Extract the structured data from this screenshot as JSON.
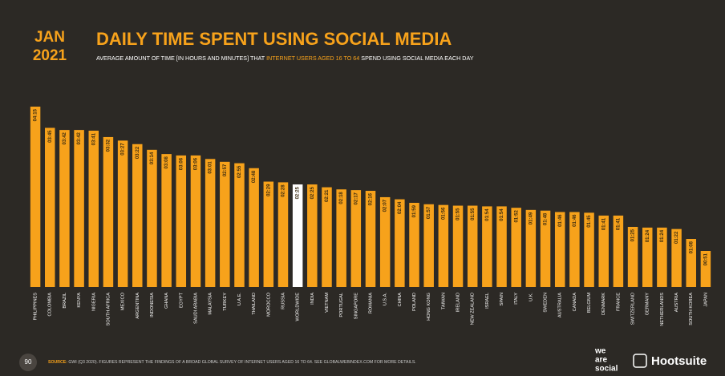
{
  "header": {
    "badge_month": "JAN",
    "badge_year": "2021"
  },
  "chart_data": {
    "type": "bar",
    "title": "DAILY TIME SPENT USING SOCIAL MEDIA",
    "subtitle_parts": [
      "AVERAGE AMOUNT OF TIME [IN HOURS AND MINUTES] THAT ",
      "INTERNET USERS AGED 16 TO 64",
      " SPEND USING SOCIAL MEDIA EACH DAY"
    ],
    "categories": [
      "PHILIPPINES",
      "COLOMBIA",
      "BRAZIL",
      "KENYA",
      "NIGERIA",
      "SOUTH AFRICA",
      "MEXICO",
      "ARGENTINA",
      "INDONESIA",
      "GHANA",
      "EGYPT",
      "SAUDI ARABIA",
      "MALAYSIA",
      "TURKEY",
      "U.A.E.",
      "THAILAND",
      "MOROCCO",
      "RUSSIA",
      "WORLDWIDE",
      "INDIA",
      "VIETNAM",
      "PORTUGAL",
      "SINGAPORE",
      "ROMANIA",
      "U.S.A.",
      "CHINA",
      "POLAND",
      "HONG KONG",
      "TAIWAN",
      "IRELAND",
      "NEW ZEALAND",
      "ISRAEL",
      "SPAIN",
      "ITALY",
      "U.K.",
      "SWEDEN",
      "AUSTRALIA",
      "CANADA",
      "BELGIUM",
      "DENMARK",
      "FRANCE",
      "SWITZERLAND",
      "GERMANY",
      "NETHERLANDS",
      "AUSTRIA",
      "SOUTH KOREA",
      "JAPAN"
    ],
    "values": [
      255,
      225,
      222,
      222,
      221,
      212,
      207,
      202,
      194,
      188,
      186,
      186,
      181,
      177,
      175,
      168,
      149,
      148,
      145,
      145,
      141,
      138,
      137,
      136,
      127,
      124,
      119,
      117,
      116,
      115,
      115,
      114,
      114,
      112,
      109,
      108,
      106,
      106,
      105,
      101,
      101,
      85,
      84,
      84,
      82,
      68,
      51
    ],
    "value_labels": [
      "04:15",
      "03:45",
      "03:42",
      "03:42",
      "03:41",
      "03:32",
      "03:27",
      "03:22",
      "03:14",
      "03:08",
      "03:06",
      "03:06",
      "03:01",
      "02:57",
      "02:55",
      "02:48",
      "02:29",
      "02:28",
      "02:25",
      "02:25",
      "02:21",
      "02:18",
      "02:17",
      "02:16",
      "02:07",
      "02:04",
      "01:59",
      "01:57",
      "01:56",
      "01:55",
      "01:55",
      "01:54",
      "01:54",
      "01:52",
      "01:49",
      "01:48",
      "01:46",
      "01:46",
      "01:45",
      "01:41",
      "01:41",
      "01:25",
      "01:24",
      "01:24",
      "01:22",
      "01:08",
      "00:51"
    ],
    "colors": [
      "#f7a21b",
      "#f7a21b",
      "#f7a21b",
      "#f7a21b",
      "#f7a21b",
      "#f7a21b",
      "#f7a21b",
      "#f7a21b",
      "#f7a21b",
      "#f7a21b",
      "#f7a21b",
      "#f7a21b",
      "#f7a21b",
      "#f7a21b",
      "#f7a21b",
      "#f7a21b",
      "#f7a21b",
      "#f7a21b",
      "#ffffff",
      "#f7a21b",
      "#f7a21b",
      "#f7a21b",
      "#f7a21b",
      "#f7a21b",
      "#f7a21b",
      "#f7a21b",
      "#f7a21b",
      "#f7a21b",
      "#f7a21b",
      "#f7a21b",
      "#f7a21b",
      "#f7a21b",
      "#f7a21b",
      "#f7a21b",
      "#f7a21b",
      "#f7a21b",
      "#f7a21b",
      "#f7a21b",
      "#f7a21b",
      "#f7a21b",
      "#f7a21b",
      "#f7a21b",
      "#f7a21b",
      "#f7a21b",
      "#f7a21b",
      "#f7a21b",
      "#f7a21b"
    ]
  },
  "footer": {
    "page": "90",
    "source_label": "SOURCE:",
    "source_text": "GWI (Q3 2020). FIGURES REPRESENT THE FINDINGS OF A BROAD GLOBAL SURVEY OF INTERNET USERS AGED 16 TO 64. SEE GLOBALWEBINDEX.COM FOR MORE DETAILS.",
    "logo_1": [
      "we",
      "are",
      "social"
    ],
    "logo_2": "Hootsuite"
  }
}
